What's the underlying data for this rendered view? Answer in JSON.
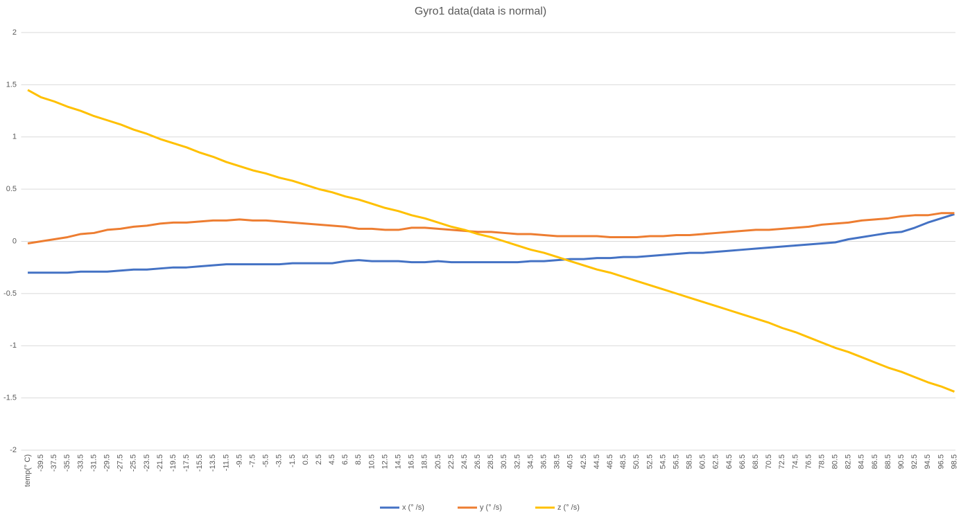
{
  "chart_data": {
    "type": "line",
    "title": "Gyro1 data(data is normal)",
    "categories": [
      "temp(° C)",
      "-39.5",
      "-37.5",
      "-35.5",
      "-33.5",
      "-31.5",
      "-29.5",
      "-27.5",
      "-25.5",
      "-23.5",
      "-21.5",
      "-19.5",
      "-17.5",
      "-15.5",
      "-13.5",
      "-11.5",
      "-9.5",
      "-7.5",
      "-5.5",
      "-3.5",
      "-1.5",
      "0.5",
      "2.5",
      "4.5",
      "6.5",
      "8.5",
      "10.5",
      "12.5",
      "14.5",
      "16.5",
      "18.5",
      "20.5",
      "22.5",
      "24.5",
      "26.5",
      "28.5",
      "30.5",
      "32.5",
      "34.5",
      "36.5",
      "38.5",
      "40.5",
      "42.5",
      "44.5",
      "46.5",
      "48.5",
      "50.5",
      "52.5",
      "54.5",
      "56.5",
      "58.5",
      "60.5",
      "62.5",
      "64.5",
      "66.5",
      "68.5",
      "70.5",
      "72.5",
      "74.5",
      "76.5",
      "78.5",
      "80.5",
      "82.5",
      "84.5",
      "86.5",
      "88.5",
      "90.5",
      "92.5",
      "94.5",
      "96.5",
      "98.5"
    ],
    "series": [
      {
        "name": "x (° /s)",
        "color": "#4472c4",
        "values": [
          -0.3,
          -0.3,
          -0.3,
          -0.3,
          -0.29,
          -0.29,
          -0.29,
          -0.28,
          -0.27,
          -0.27,
          -0.26,
          -0.25,
          -0.25,
          -0.24,
          -0.23,
          -0.22,
          -0.22,
          -0.22,
          -0.22,
          -0.22,
          -0.21,
          -0.21,
          -0.21,
          -0.21,
          -0.19,
          -0.18,
          -0.19,
          -0.19,
          -0.19,
          -0.2,
          -0.2,
          -0.19,
          -0.2,
          -0.2,
          -0.2,
          -0.2,
          -0.2,
          -0.2,
          -0.19,
          -0.19,
          -0.18,
          -0.17,
          -0.17,
          -0.16,
          -0.16,
          -0.15,
          -0.15,
          -0.14,
          -0.13,
          -0.12,
          -0.11,
          -0.11,
          -0.1,
          -0.09,
          -0.08,
          -0.07,
          -0.06,
          -0.05,
          -0.04,
          -0.03,
          -0.02,
          -0.01,
          0.02,
          0.04,
          0.06,
          0.08,
          0.09,
          0.13,
          0.18,
          0.22,
          0.26
        ]
      },
      {
        "name": "y (° /s)",
        "color": "#ed7d31",
        "values": [
          -0.02,
          0.0,
          0.02,
          0.04,
          0.07,
          0.08,
          0.11,
          0.12,
          0.14,
          0.15,
          0.17,
          0.18,
          0.18,
          0.19,
          0.2,
          0.2,
          0.21,
          0.2,
          0.2,
          0.19,
          0.18,
          0.17,
          0.16,
          0.15,
          0.14,
          0.12,
          0.12,
          0.11,
          0.11,
          0.13,
          0.13,
          0.12,
          0.11,
          0.1,
          0.09,
          0.09,
          0.08,
          0.07,
          0.07,
          0.06,
          0.05,
          0.05,
          0.05,
          0.05,
          0.04,
          0.04,
          0.04,
          0.05,
          0.05,
          0.06,
          0.06,
          0.07,
          0.08,
          0.09,
          0.1,
          0.11,
          0.11,
          0.12,
          0.13,
          0.14,
          0.16,
          0.17,
          0.18,
          0.2,
          0.21,
          0.22,
          0.24,
          0.25,
          0.25,
          0.27,
          0.27
        ]
      },
      {
        "name": "z (° /s)",
        "color": "#ffc000",
        "values": [
          1.45,
          1.38,
          1.34,
          1.29,
          1.25,
          1.2,
          1.16,
          1.12,
          1.07,
          1.03,
          0.98,
          0.94,
          0.9,
          0.85,
          0.81,
          0.76,
          0.72,
          0.68,
          0.65,
          0.61,
          0.58,
          0.54,
          0.5,
          0.47,
          0.43,
          0.4,
          0.36,
          0.32,
          0.29,
          0.25,
          0.22,
          0.18,
          0.14,
          0.11,
          0.07,
          0.04,
          0.0,
          -0.04,
          -0.08,
          -0.11,
          -0.15,
          -0.19,
          -0.23,
          -0.27,
          -0.3,
          -0.34,
          -0.38,
          -0.42,
          -0.46,
          -0.5,
          -0.54,
          -0.58,
          -0.62,
          -0.66,
          -0.7,
          -0.74,
          -0.78,
          -0.83,
          -0.87,
          -0.92,
          -0.97,
          -1.02,
          -1.06,
          -1.11,
          -1.16,
          -1.21,
          -1.25,
          -1.3,
          -1.35,
          -1.39,
          -1.44
        ]
      }
    ],
    "ylim": [
      -2,
      2
    ],
    "yticks": [
      -2,
      -1.5,
      -1,
      -0.5,
      0,
      0.5,
      1,
      1.5,
      2
    ],
    "grid": true,
    "legend": "bottom"
  }
}
